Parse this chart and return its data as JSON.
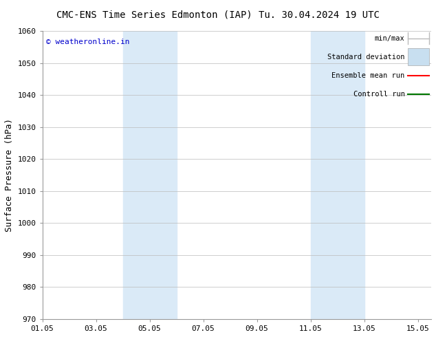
{
  "title_left": "CMC-ENS Time Series Edmonton (IAP)",
  "title_right": "Tu. 30.04.2024 19 UTC",
  "ylabel": "Surface Pressure (hPa)",
  "ylim": [
    970,
    1060
  ],
  "yticks": [
    970,
    980,
    990,
    1000,
    1010,
    1020,
    1030,
    1040,
    1050,
    1060
  ],
  "xlim_start": 0.0,
  "xlim_end": 14.5,
  "xtick_positions": [
    0,
    2,
    4,
    6,
    8,
    10,
    12,
    14
  ],
  "xtick_labels": [
    "01.05",
    "03.05",
    "05.05",
    "07.05",
    "09.05",
    "11.05",
    "13.05",
    "15.05"
  ],
  "background_color": "#ffffff",
  "shaded_bands": [
    {
      "x_start": 3.0,
      "x_end": 5.0,
      "color": "#daeaf7"
    },
    {
      "x_start": 10.0,
      "x_end": 12.0,
      "color": "#daeaf7"
    }
  ],
  "legend_entries": [
    {
      "label": "min/max",
      "color": "#bbbbbb"
    },
    {
      "label": "Standard deviation",
      "color": "#c8dff0"
    },
    {
      "label": "Ensemble mean run",
      "color": "#ff0000"
    },
    {
      "label": "Controll run",
      "color": "#007700"
    }
  ],
  "watermark_text": "© weatheronline.in",
  "watermark_color": "#0000cc",
  "grid_color": "#bbbbbb",
  "title_fontsize": 10,
  "axis_label_fontsize": 9,
  "tick_fontsize": 8,
  "legend_fontsize": 7.5,
  "watermark_fontsize": 8
}
